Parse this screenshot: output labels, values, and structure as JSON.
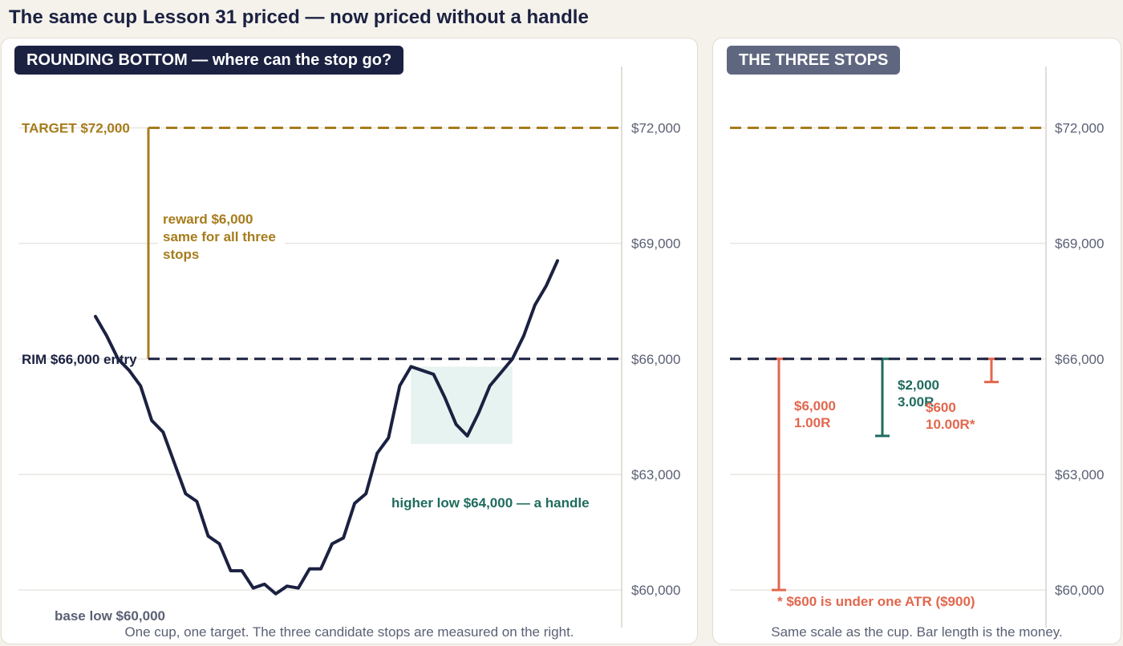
{
  "page": {
    "title": "The same cup Lesson 31 priced — now priced without a handle"
  },
  "colors": {
    "navy": "#1b2141",
    "gold": "#a67c1c",
    "teal": "#1f6b5e",
    "coral": "#e2674d",
    "slate": "#5b6074",
    "pill_gray": "#5f6780",
    "handle_fill": "#e6f3f0",
    "grid": "#e8e6e1"
  },
  "left_panel": {
    "pill": "ROUNDING BOTTOM — where can the stop go?",
    "caption": "One cup, one target. The three candidate stops are measured on the right.",
    "target_label": "TARGET $72,000",
    "rim_label": "RIM $66,000 entry",
    "reward_label_lines": [
      "reward $6,000",
      "same for all three",
      "stops"
    ],
    "handle_label": "higher low $64,000 — a handle",
    "base_label": "base low $60,000"
  },
  "right_panel": {
    "pill": "THE THREE STOPS",
    "caption": "Same scale as the cup. Bar length is the money.",
    "footnote": "* $600 is under one ATR ($900)"
  },
  "chart_data": [
    {
      "type": "line",
      "title": "ROUNDING BOTTOM — where can the stop go?",
      "y_ticks": [
        "$72,000",
        "$69,000",
        "$66,000",
        "$63,000",
        "$60,000"
      ],
      "ylim": [
        58400,
        73800
      ],
      "grid": true,
      "levels": {
        "target": 72000,
        "rim_entry": 66000,
        "handle_low": 64000,
        "base_low": 60000
      },
      "series": [
        {
          "values": [
            67100,
            66600,
            66000,
            65700,
            65300,
            64400,
            64100,
            63300,
            62500,
            62300,
            61400,
            61200,
            60500,
            60500,
            60050,
            60150,
            59900,
            60100,
            60050,
            60550,
            60550,
            61200,
            61350,
            62250,
            62500,
            63550,
            63950,
            65300,
            65800,
            65700,
            65600,
            65000,
            64300,
            64000,
            64600,
            65300,
            65650,
            66000,
            66600,
            67400,
            67900,
            68550
          ]
        }
      ],
      "handle_zone": {
        "from": 64000,
        "to": 65800
      }
    },
    {
      "type": "bar",
      "title": "THE THREE STOPS",
      "y_ticks": [
        "$72,000",
        "$69,000",
        "$66,000",
        "$63,000",
        "$60,000"
      ],
      "ylim": [
        58400,
        73800
      ],
      "target": 72000,
      "entry": 66000,
      "stops": [
        {
          "stop": 60000,
          "risk_label": "$6,000",
          "r_label": "1.00R",
          "color": "#e2674d"
        },
        {
          "stop": 64000,
          "risk_label": "$2,000",
          "r_label": "3.00R",
          "color": "#1f6b5e"
        },
        {
          "stop": 65400,
          "risk_label": "$600",
          "r_label": "10.00R*",
          "color": "#e2674d"
        }
      ]
    }
  ]
}
